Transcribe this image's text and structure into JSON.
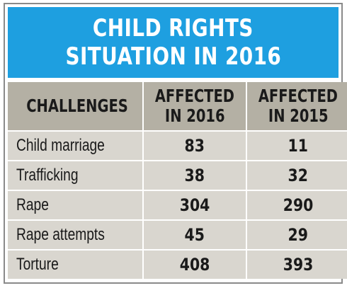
{
  "colors": {
    "title_bg": "#1e9fe0",
    "header_bg": "#b4b0a4",
    "row_bg": "#d9d6cf",
    "text": "#1a1a1a",
    "title_text": "#ffffff"
  },
  "chart_data": {
    "type": "table",
    "title": [
      "CHILD RIGHTS",
      "SITUATION IN 2016"
    ],
    "columns": [
      [
        "CHALLENGES"
      ],
      [
        "AFFECTED",
        "IN 2016"
      ],
      [
        "AFFECTED",
        "IN 2015"
      ]
    ],
    "rows": [
      {
        "challenge": "Child marriage",
        "affected_2016": 83,
        "affected_2015": 11
      },
      {
        "challenge": "Trafficking",
        "affected_2016": 38,
        "affected_2015": 32
      },
      {
        "challenge": "Rape",
        "affected_2016": 304,
        "affected_2015": 290
      },
      {
        "challenge": "Rape attempts",
        "affected_2016": 45,
        "affected_2015": 29
      },
      {
        "challenge": "Torture",
        "affected_2016": 408,
        "affected_2015": 393
      }
    ]
  }
}
